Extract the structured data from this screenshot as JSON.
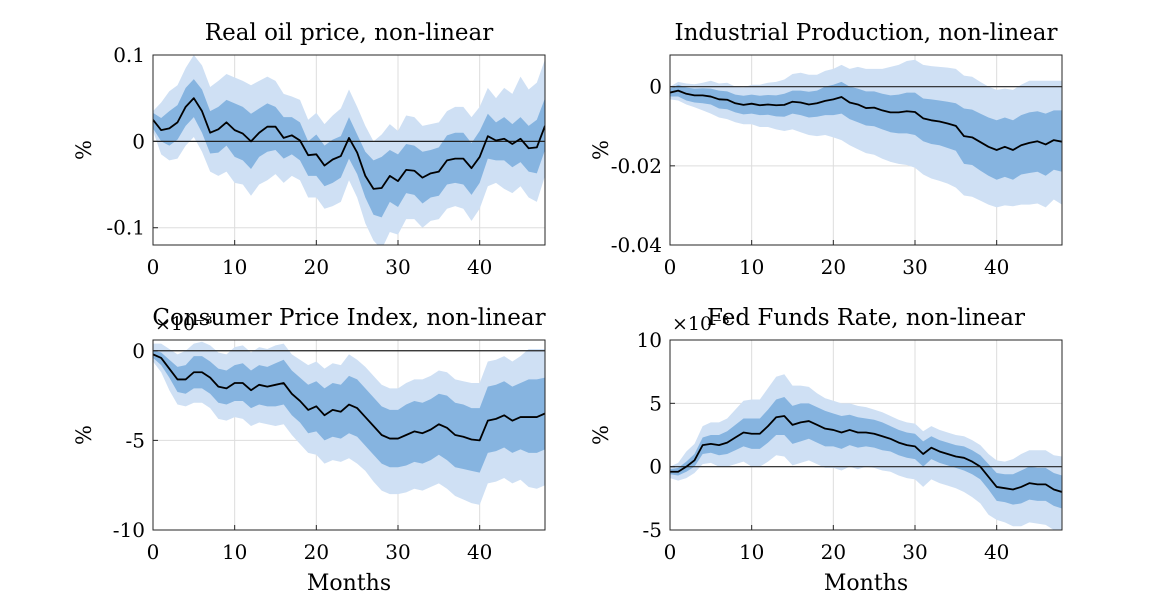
{
  "colors": {
    "outer_band": "#cfe0f4",
    "inner_band": "#86b4e0",
    "median_line": "#000000",
    "zero_line": "#222222",
    "grid": "#dddddd"
  },
  "chart_data": [
    {
      "type": "area",
      "title": "Real oil price, non-linear",
      "ylabel": "%",
      "xlabel": "",
      "exponent_label": "",
      "xlim": [
        0,
        48
      ],
      "ylim": [
        -0.12,
        0.1
      ],
      "xticks": [
        0,
        10,
        20,
        30,
        40
      ],
      "yticks": [
        -0.1,
        0,
        0.1
      ],
      "ytick_labels": [
        "-0.1",
        "0",
        "0.1"
      ],
      "grid": true,
      "median": [
        0.025,
        0.013,
        0.015,
        0.022,
        0.04,
        0.05,
        0.035,
        0.01,
        0.014,
        0.022,
        0.013,
        0.009,
        0.0,
        0.01,
        0.017,
        0.017,
        0.004,
        0.007,
        0.001,
        -0.016,
        -0.015,
        -0.028,
        -0.021,
        -0.017,
        0.004,
        -0.013,
        -0.04,
        -0.055,
        -0.054,
        -0.04,
        -0.046,
        -0.033,
        -0.034,
        -0.042,
        -0.037,
        -0.035,
        -0.022,
        -0.02,
        -0.02,
        -0.031,
        -0.018,
        0.006,
        0.001,
        0.003,
        -0.003,
        0.003,
        -0.008,
        -0.007,
        0.018
      ],
      "inner_upper": [
        0.033,
        0.027,
        0.035,
        0.042,
        0.062,
        0.072,
        0.06,
        0.035,
        0.04,
        0.048,
        0.044,
        0.04,
        0.032,
        0.038,
        0.044,
        0.04,
        0.028,
        0.028,
        0.022,
        0.0,
        0.008,
        -0.005,
        0.002,
        0.006,
        0.028,
        0.008,
        -0.012,
        -0.022,
        -0.018,
        -0.01,
        -0.015,
        -0.003,
        -0.005,
        -0.012,
        -0.01,
        -0.007,
        0.007,
        0.01,
        0.01,
        -0.002,
        0.012,
        0.032,
        0.022,
        0.028,
        0.02,
        0.028,
        0.018,
        0.025,
        0.05
      ],
      "inner_lower": [
        0.015,
        0.0,
        -0.005,
        0.002,
        0.018,
        0.028,
        0.01,
        -0.014,
        -0.013,
        -0.005,
        -0.018,
        -0.022,
        -0.032,
        -0.018,
        -0.012,
        -0.01,
        -0.02,
        -0.015,
        -0.022,
        -0.04,
        -0.04,
        -0.052,
        -0.048,
        -0.042,
        -0.02,
        -0.038,
        -0.065,
        -0.085,
        -0.088,
        -0.07,
        -0.076,
        -0.06,
        -0.062,
        -0.072,
        -0.065,
        -0.063,
        -0.05,
        -0.048,
        -0.05,
        -0.062,
        -0.048,
        -0.02,
        -0.022,
        -0.022,
        -0.03,
        -0.024,
        -0.035,
        -0.037,
        -0.01
      ],
      "outer_upper": [
        0.035,
        0.045,
        0.058,
        0.065,
        0.085,
        0.1,
        0.088,
        0.063,
        0.07,
        0.078,
        0.074,
        0.07,
        0.065,
        0.07,
        0.075,
        0.07,
        0.055,
        0.052,
        0.048,
        0.025,
        0.033,
        0.02,
        0.03,
        0.038,
        0.06,
        0.04,
        0.018,
        0.0,
        0.008,
        0.02,
        0.012,
        0.03,
        0.028,
        0.018,
        0.02,
        0.022,
        0.035,
        0.04,
        0.04,
        0.028,
        0.04,
        0.062,
        0.05,
        0.062,
        0.055,
        0.075,
        0.06,
        0.068,
        0.095
      ],
      "outer_lower": [
        0.012,
        -0.015,
        -0.022,
        -0.02,
        -0.005,
        0.005,
        -0.012,
        -0.035,
        -0.04,
        -0.035,
        -0.048,
        -0.05,
        -0.063,
        -0.05,
        -0.045,
        -0.038,
        -0.048,
        -0.04,
        -0.045,
        -0.065,
        -0.065,
        -0.078,
        -0.075,
        -0.07,
        -0.045,
        -0.065,
        -0.095,
        -0.115,
        -0.125,
        -0.105,
        -0.108,
        -0.09,
        -0.09,
        -0.1,
        -0.092,
        -0.09,
        -0.078,
        -0.075,
        -0.078,
        -0.092,
        -0.078,
        -0.052,
        -0.048,
        -0.055,
        -0.06,
        -0.052,
        -0.065,
        -0.07,
        -0.04
      ]
    },
    {
      "type": "area",
      "title": "Industrial Production, non-linear",
      "ylabel": "%",
      "xlabel": "",
      "exponent_label": "",
      "xlim": [
        0,
        48
      ],
      "ylim": [
        -0.04,
        0.008
      ],
      "xticks": [
        0,
        10,
        20,
        30,
        40
      ],
      "yticks": [
        -0.04,
        -0.02,
        0
      ],
      "ytick_labels": [
        "-0.04",
        "-0.02",
        "0"
      ],
      "grid": true,
      "median": [
        -0.0015,
        -0.001,
        -0.0018,
        -0.0022,
        -0.0022,
        -0.0025,
        -0.0032,
        -0.0033,
        -0.0042,
        -0.0046,
        -0.0043,
        -0.0047,
        -0.0045,
        -0.0047,
        -0.0046,
        -0.0038,
        -0.004,
        -0.0045,
        -0.0042,
        -0.0036,
        -0.0032,
        -0.0026,
        -0.004,
        -0.0045,
        -0.0054,
        -0.0053,
        -0.006,
        -0.0065,
        -0.0065,
        -0.0062,
        -0.0064,
        -0.008,
        -0.0085,
        -0.0088,
        -0.0093,
        -0.0099,
        -0.0125,
        -0.0128,
        -0.014,
        -0.0152,
        -0.016,
        -0.0152,
        -0.016,
        -0.0148,
        -0.0142,
        -0.0138,
        -0.0146,
        -0.0135,
        -0.0139
      ],
      "inner_upper": [
        -0.0005,
        0.0005,
        -0.0002,
        -0.0005,
        -0.0004,
        -0.0005,
        -0.001,
        -0.0012,
        -0.002,
        -0.0023,
        -0.002,
        -0.0023,
        -0.0021,
        -0.0022,
        -0.0018,
        -0.001,
        -0.001,
        -0.0013,
        -0.001,
        0.0,
        0.0005,
        0.0012,
        0.0,
        -0.0005,
        -0.0012,
        -0.0012,
        -0.0018,
        -0.0022,
        -0.002,
        -0.0015,
        -0.0015,
        -0.003,
        -0.0032,
        -0.0035,
        -0.0038,
        -0.0042,
        -0.0055,
        -0.0058,
        -0.0068,
        -0.0078,
        -0.0085,
        -0.0078,
        -0.0085,
        -0.0072,
        -0.0065,
        -0.0062,
        -0.0068,
        -0.006,
        -0.006
      ],
      "inner_lower": [
        -0.0025,
        -0.0025,
        -0.0035,
        -0.004,
        -0.0042,
        -0.0045,
        -0.0055,
        -0.0057,
        -0.0065,
        -0.007,
        -0.0068,
        -0.0072,
        -0.0071,
        -0.0075,
        -0.0076,
        -0.0068,
        -0.0072,
        -0.0078,
        -0.0076,
        -0.0072,
        -0.0072,
        -0.0068,
        -0.0082,
        -0.009,
        -0.0098,
        -0.01,
        -0.0108,
        -0.0115,
        -0.0118,
        -0.0118,
        -0.0122,
        -0.0138,
        -0.0145,
        -0.0148,
        -0.0155,
        -0.0162,
        -0.0195,
        -0.0198,
        -0.0212,
        -0.0225,
        -0.0235,
        -0.0228,
        -0.0235,
        -0.0222,
        -0.0218,
        -0.0215,
        -0.0225,
        -0.021,
        -0.0215
      ],
      "outer_upper": [
        0.0,
        0.0012,
        0.0008,
        0.0006,
        0.001,
        0.0015,
        0.0008,
        0.001,
        0.0,
        -0.0002,
        0.0005,
        0.0005,
        0.001,
        0.0012,
        0.0018,
        0.0032,
        0.0035,
        0.003,
        0.003,
        0.004,
        0.0045,
        0.0055,
        0.0045,
        0.005,
        0.0045,
        0.0045,
        0.0045,
        0.005,
        0.0055,
        0.0065,
        0.0068,
        0.0055,
        0.0052,
        0.005,
        0.0048,
        0.0045,
        0.0028,
        0.0025,
        0.0012,
        0.0,
        -0.0008,
        -0.0005,
        -0.0008,
        0.0005,
        0.0015,
        0.0015,
        0.0015,
        0.0015,
        0.0015
      ],
      "outer_lower": [
        -0.0032,
        -0.0035,
        -0.0045,
        -0.0052,
        -0.006,
        -0.0068,
        -0.0078,
        -0.0082,
        -0.009,
        -0.0095,
        -0.0095,
        -0.0102,
        -0.0102,
        -0.0108,
        -0.0112,
        -0.0108,
        -0.0115,
        -0.0122,
        -0.0125,
        -0.0122,
        -0.0128,
        -0.0135,
        -0.0148,
        -0.0158,
        -0.0168,
        -0.0172,
        -0.0182,
        -0.019,
        -0.0195,
        -0.0198,
        -0.0205,
        -0.0222,
        -0.0232,
        -0.0238,
        -0.0245,
        -0.0255,
        -0.0275,
        -0.0278,
        -0.0288,
        -0.0298,
        -0.0305,
        -0.03,
        -0.0302,
        -0.0298,
        -0.0298,
        -0.0295,
        -0.0305,
        -0.0285,
        -0.0298
      ]
    },
    {
      "type": "area",
      "title": "Consumer Price Index, non-linear",
      "ylabel": "%",
      "xlabel": "Months",
      "exponent_label": "×10⁻³",
      "xlim": [
        0,
        48
      ],
      "ylim": [
        -10,
        0.6
      ],
      "xticks": [
        0,
        10,
        20,
        30,
        40
      ],
      "yticks": [
        -10,
        -5,
        0
      ],
      "ytick_labels": [
        "-10",
        "-5",
        "0"
      ],
      "grid": true,
      "median": [
        -0.2,
        -0.4,
        -1.0,
        -1.6,
        -1.6,
        -1.2,
        -1.2,
        -1.5,
        -2.0,
        -2.1,
        -1.8,
        -1.8,
        -2.2,
        -1.9,
        -2.0,
        -1.9,
        -1.8,
        -2.4,
        -2.8,
        -3.3,
        -3.1,
        -3.6,
        -3.3,
        -3.4,
        -3.0,
        -3.2,
        -3.7,
        -4.2,
        -4.7,
        -4.9,
        -4.9,
        -4.7,
        -4.5,
        -4.6,
        -4.4,
        -4.1,
        -4.3,
        -4.7,
        -4.8,
        -4.95,
        -5.0,
        -3.9,
        -3.8,
        -3.6,
        -3.9,
        -3.7,
        -3.7,
        -3.7,
        -3.5
      ],
      "inner_upper": [
        0.0,
        -0.1,
        -0.5,
        -0.9,
        -0.8,
        -0.3,
        -0.3,
        -0.6,
        -1.0,
        -1.1,
        -0.8,
        -0.7,
        -1.1,
        -0.8,
        -0.9,
        -0.7,
        -0.5,
        -1.1,
        -1.5,
        -1.9,
        -1.7,
        -2.1,
        -1.8,
        -1.9,
        -1.4,
        -1.6,
        -2.1,
        -2.6,
        -3.1,
        -3.3,
        -3.3,
        -3.0,
        -2.8,
        -2.9,
        -2.7,
        -2.4,
        -2.5,
        -2.9,
        -3.0,
        -3.2,
        -3.2,
        -2.0,
        -1.9,
        -1.7,
        -2.0,
        -1.8,
        -1.6,
        -1.6,
        -1.5
      ],
      "inner_lower": [
        -0.4,
        -0.8,
        -1.5,
        -2.3,
        -2.4,
        -2.1,
        -2.1,
        -2.4,
        -2.9,
        -3.0,
        -2.8,
        -2.8,
        -3.2,
        -3.0,
        -3.1,
        -3.1,
        -3.0,
        -3.6,
        -4.0,
        -4.6,
        -4.5,
        -5.0,
        -4.8,
        -4.9,
        -4.6,
        -4.8,
        -5.3,
        -5.8,
        -6.3,
        -6.5,
        -6.5,
        -6.4,
        -6.2,
        -6.3,
        -6.1,
        -5.8,
        -6.1,
        -6.5,
        -6.6,
        -6.7,
        -6.8,
        -5.7,
        -5.6,
        -5.4,
        -5.7,
        -5.5,
        -5.7,
        -5.7,
        -5.5
      ],
      "outer_upper": [
        0.4,
        0.4,
        0.1,
        -0.2,
        0.0,
        0.4,
        0.5,
        0.3,
        -0.1,
        -0.2,
        0.2,
        0.3,
        -0.1,
        0.2,
        0.1,
        0.3,
        0.4,
        -0.2,
        -0.5,
        -0.8,
        -0.6,
        -1.0,
        -0.7,
        -0.8,
        -0.2,
        -0.5,
        -0.9,
        -1.4,
        -1.9,
        -2.1,
        -2.1,
        -1.8,
        -1.6,
        -1.6,
        -1.4,
        -1.1,
        -1.2,
        -1.6,
        -1.7,
        -1.8,
        -1.8,
        -0.6,
        -0.5,
        -0.3,
        -0.6,
        -0.3,
        0.1,
        0.1,
        0.1
      ],
      "outer_lower": [
        -0.6,
        -1.2,
        -2.2,
        -3.0,
        -3.1,
        -2.9,
        -2.9,
        -3.2,
        -3.8,
        -3.9,
        -3.7,
        -3.8,
        -4.2,
        -4.0,
        -4.1,
        -4.2,
        -4.1,
        -4.7,
        -5.2,
        -5.7,
        -5.8,
        -6.3,
        -6.1,
        -6.2,
        -6.0,
        -6.3,
        -6.7,
        -7.3,
        -7.8,
        -8.0,
        -8.0,
        -7.9,
        -7.7,
        -7.8,
        -7.6,
        -7.4,
        -7.7,
        -8.1,
        -8.3,
        -8.5,
        -8.6,
        -7.4,
        -7.3,
        -7.1,
        -7.4,
        -7.2,
        -7.6,
        -7.7,
        -7.5
      ]
    },
    {
      "type": "area",
      "title": "Fed Funds Rate, non-linear",
      "ylabel": "%",
      "xlabel": "Months",
      "exponent_label": "×10⁻³",
      "xlim": [
        0,
        48
      ],
      "ylim": [
        -5,
        10
      ],
      "xticks": [
        0,
        10,
        20,
        30,
        40
      ],
      "yticks": [
        -5,
        0,
        5,
        10
      ],
      "ytick_labels": [
        "-5",
        "0",
        "5",
        "10"
      ],
      "grid": true,
      "median": [
        -0.4,
        -0.4,
        0.0,
        0.5,
        1.7,
        1.8,
        1.7,
        1.9,
        2.3,
        2.7,
        2.6,
        2.6,
        3.2,
        3.9,
        4.0,
        3.3,
        3.5,
        3.6,
        3.3,
        3.0,
        2.9,
        2.7,
        2.9,
        2.7,
        2.7,
        2.6,
        2.4,
        2.2,
        1.9,
        1.7,
        1.6,
        1.0,
        1.5,
        1.2,
        1.0,
        0.8,
        0.7,
        0.4,
        0.0,
        -0.8,
        -1.6,
        -1.7,
        -1.8,
        -1.6,
        -1.3,
        -1.4,
        -1.4,
        -1.8,
        -2.0
      ],
      "inner_upper": [
        -0.2,
        -0.1,
        0.4,
        1.0,
        2.3,
        2.5,
        2.5,
        2.8,
        3.3,
        3.8,
        3.8,
        3.8,
        4.5,
        5.3,
        5.5,
        4.8,
        5.0,
        5.0,
        4.7,
        4.4,
        4.2,
        4.0,
        4.1,
        3.9,
        3.8,
        3.7,
        3.5,
        3.2,
        2.9,
        2.7,
        2.6,
        2.0,
        2.4,
        2.1,
        1.9,
        1.7,
        1.6,
        1.3,
        0.9,
        0.2,
        -0.5,
        -0.6,
        -0.6,
        -0.3,
        0.0,
        -0.1,
        -0.1,
        -0.5,
        -0.7
      ],
      "inner_lower": [
        -0.6,
        -0.7,
        -0.4,
        0.0,
        1.0,
        1.1,
        0.9,
        1.0,
        1.3,
        1.6,
        1.4,
        1.4,
        1.9,
        2.5,
        2.5,
        1.8,
        2.0,
        2.2,
        1.9,
        1.6,
        1.6,
        1.4,
        1.7,
        1.5,
        1.6,
        1.5,
        1.3,
        1.2,
        0.9,
        0.7,
        0.6,
        0.0,
        0.6,
        0.3,
        0.1,
        -0.1,
        -0.3,
        -0.6,
        -1.0,
        -1.8,
        -2.7,
        -2.8,
        -3.0,
        -2.9,
        -2.6,
        -2.7,
        -2.7,
        -3.1,
        -3.3
      ],
      "outer_upper": [
        0.0,
        0.3,
        1.2,
        1.8,
        3.2,
        3.5,
        3.5,
        3.8,
        4.5,
        5.2,
        5.3,
        5.3,
        6.2,
        7.1,
        7.3,
        6.4,
        6.4,
        6.3,
        5.8,
        5.4,
        5.2,
        5.0,
        5.0,
        4.8,
        4.7,
        4.5,
        4.3,
        4.0,
        3.7,
        3.5,
        3.4,
        2.8,
        3.2,
        2.9,
        2.7,
        2.5,
        2.4,
        2.1,
        1.7,
        1.0,
        0.5,
        0.4,
        0.6,
        1.0,
        1.3,
        1.3,
        1.3,
        0.9,
        0.8
      ],
      "outer_lower": [
        -0.9,
        -1.1,
        -0.9,
        -0.5,
        0.2,
        0.3,
        0.0,
        0.0,
        0.2,
        0.4,
        0.0,
        0.0,
        0.4,
        0.9,
        0.8,
        0.1,
        0.3,
        0.5,
        0.2,
        -0.1,
        -0.1,
        -0.3,
        0.0,
        -0.2,
        0.0,
        -0.1,
        -0.3,
        -0.4,
        -0.7,
        -0.9,
        -1.0,
        -1.6,
        -1.0,
        -1.3,
        -1.5,
        -1.7,
        -2.0,
        -2.4,
        -2.9,
        -3.8,
        -4.2,
        -4.4,
        -4.7,
        -4.7,
        -4.4,
        -4.5,
        -4.6,
        -5.0,
        -5.2
      ]
    }
  ]
}
